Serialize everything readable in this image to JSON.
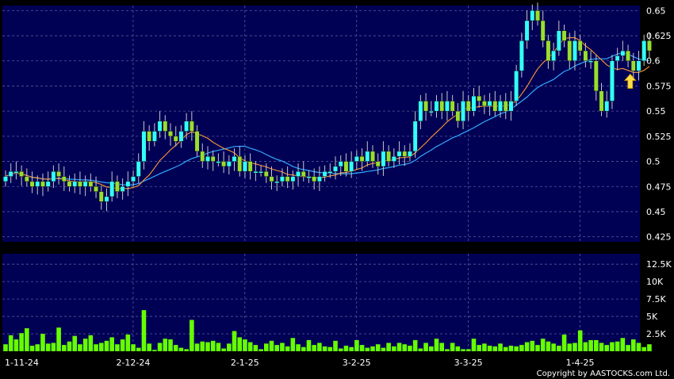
{
  "chart_data": {
    "type": "candlestick",
    "grid": true,
    "colors": {
      "background": "#000000",
      "panel": "#000055",
      "grid": "#5a5a9a",
      "up_candle": "#33ffff",
      "down_candle": "#99dd33",
      "ma_fast": "#ff9933",
      "ma_slow": "#33aaff",
      "volume_bar": "#66ff00",
      "arrow": "#ffdd44"
    },
    "x_labels": [
      {
        "label": "1-11-24",
        "index": 0
      },
      {
        "label": "2-12-24",
        "index": 21
      },
      {
        "label": "2-1-25",
        "index": 42
      },
      {
        "label": "3-2-25",
        "index": 63
      },
      {
        "label": "3-3-25",
        "index": 84
      },
      {
        "label": "1-4-25",
        "index": 105
      }
    ],
    "price_axis": {
      "ylim": [
        0.42,
        0.655
      ],
      "ticks": [
        "0.425",
        "0.45",
        "0.475",
        "0.5",
        "0.525",
        "0.55",
        "0.575",
        "0.6",
        "0.625",
        "0.65"
      ]
    },
    "volume_axis": {
      "ylim": [
        0,
        14000
      ],
      "ticks": [
        {
          "value": 2500,
          "label": "2.5K"
        },
        {
          "value": 5000,
          "label": "5K"
        },
        {
          "value": 7500,
          "label": "7.5K"
        },
        {
          "value": 10000,
          "label": "10K"
        },
        {
          "value": 12500,
          "label": "12.5K"
        }
      ]
    },
    "close": [
      0.485,
      0.49,
      0.49,
      0.485,
      0.48,
      0.475,
      0.48,
      0.475,
      0.48,
      0.49,
      0.485,
      0.48,
      0.475,
      0.48,
      0.475,
      0.48,
      0.475,
      0.47,
      0.46,
      0.465,
      0.48,
      0.47,
      0.475,
      0.48,
      0.485,
      0.5,
      0.53,
      0.52,
      0.53,
      0.54,
      0.53,
      0.525,
      0.52,
      0.53,
      0.54,
      0.53,
      0.51,
      0.5,
      0.505,
      0.5,
      0.5,
      0.495,
      0.5,
      0.505,
      0.49,
      0.5,
      0.49,
      0.49,
      0.49,
      0.485,
      0.48,
      0.48,
      0.485,
      0.48,
      0.485,
      0.49,
      0.485,
      0.485,
      0.48,
      0.485,
      0.49,
      0.49,
      0.495,
      0.5,
      0.49,
      0.5,
      0.505,
      0.5,
      0.51,
      0.5,
      0.495,
      0.51,
      0.5,
      0.505,
      0.51,
      0.505,
      0.51,
      0.54,
      0.56,
      0.55,
      0.55,
      0.56,
      0.55,
      0.56,
      0.55,
      0.54,
      0.56,
      0.55,
      0.565,
      0.56,
      0.555,
      0.56,
      0.55,
      0.56,
      0.55,
      0.56,
      0.59,
      0.62,
      0.64,
      0.65,
      0.64,
      0.62,
      0.6,
      0.61,
      0.63,
      0.62,
      0.6,
      0.62,
      0.61,
      0.6,
      0.6,
      0.57,
      0.55,
      0.56,
      0.6,
      0.605,
      0.61,
      0.6,
      0.59,
      0.6,
      0.62,
      0.61
    ],
    "volume": [
      1000,
      2300,
      1700,
      2600,
      3300,
      800,
      1000,
      2500,
      1100,
      1200,
      3400,
      900,
      1400,
      2200,
      1000,
      1800,
      2300,
      1000,
      1200,
      1500,
      2000,
      1000,
      1700,
      2400,
      1000,
      500,
      5900,
      1100,
      200,
      1200,
      1800,
      1700,
      900,
      500,
      300,
      4500,
      1100,
      1400,
      1300,
      1500,
      1200,
      400,
      1100,
      2900,
      2000,
      1700,
      1300,
      900,
      300,
      1100,
      1500,
      900,
      1200,
      700,
      1900,
      1000,
      600,
      1600,
      900,
      1200,
      700,
      600,
      1500,
      400,
      800,
      600,
      1600,
      900,
      500,
      700,
      1000,
      500,
      1200,
      700,
      1200,
      1000,
      800,
      1600,
      400,
      1200,
      700,
      1800,
      1200,
      300,
      1200,
      700,
      300,
      300,
      1800,
      900,
      1100,
      800,
      700,
      1100,
      600,
      800,
      700,
      900,
      1300,
      1500,
      900,
      1800,
      1400,
      1100,
      800,
      2400,
      1100,
      1200,
      3000,
      1300,
      1600,
      1600,
      1200,
      900,
      1300,
      1400,
      1900,
      900,
      1700,
      1200,
      600,
      1000
    ],
    "arrow_index": 118,
    "copyright": "Copyright by AASTOCKS.com Ltd."
  }
}
